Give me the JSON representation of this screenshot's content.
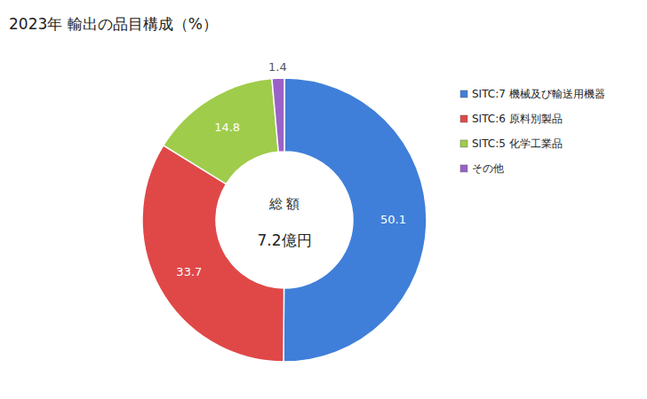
{
  "chart_data": {
    "type": "pie",
    "title": "2023年 輸出の品目構成（%）",
    "categories": [
      "SITC:7 機械及び輸送用機器",
      "SITC:6 原料別製品",
      "SITC:5 化学工業品",
      "その他"
    ],
    "values": [
      50.1,
      33.7,
      14.8,
      1.4
    ],
    "colors": [
      "#3f7fd9",
      "#e04848",
      "#9fcc4a",
      "#9a62c8"
    ],
    "annotations": [
      "総 額",
      "7.2億円"
    ],
    "data_labels": true,
    "legend": "right"
  }
}
